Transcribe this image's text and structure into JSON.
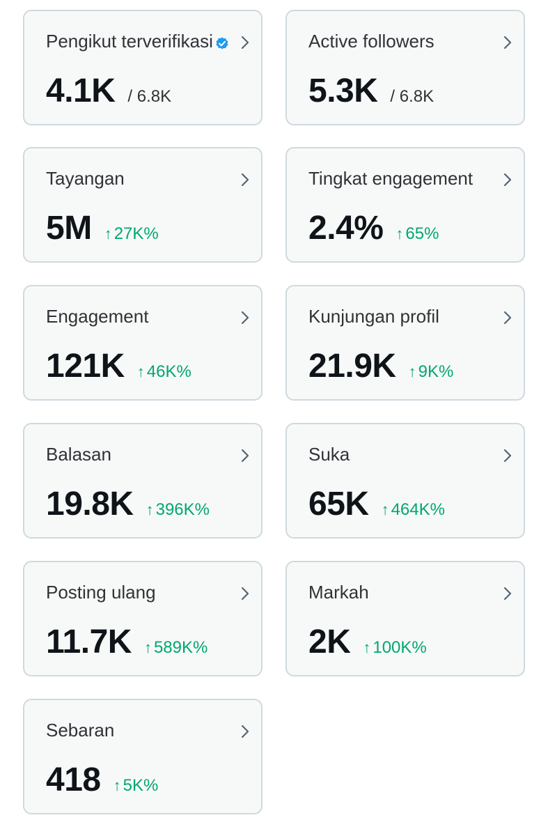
{
  "cards": [
    {
      "title": "Pengikut terverifikasi",
      "value": "4.1K",
      "sub": "/ 6.8K",
      "verified": true
    },
    {
      "title": "Active followers",
      "value": "5.3K",
      "sub": "/ 6.8K"
    },
    {
      "title": "Tayangan",
      "value": "5M",
      "change": "27K%"
    },
    {
      "title": "Tingkat engagement",
      "value": "2.4%",
      "change": "65%"
    },
    {
      "title": "Engagement",
      "value": "121K",
      "change": "46K%"
    },
    {
      "title": "Kunjungan profil",
      "value": "21.9K",
      "change": "9K%"
    },
    {
      "title": "Balasan",
      "value": "19.8K",
      "change": "396K%"
    },
    {
      "title": "Suka",
      "value": "65K",
      "change": "464K%"
    },
    {
      "title": "Posting ulang",
      "value": "11.7K",
      "change": "589K%"
    },
    {
      "title": "Markah",
      "value": "2K",
      "change": "100K%"
    },
    {
      "title": "Sebaran",
      "value": "418",
      "change": "5K%"
    }
  ],
  "icons": {
    "chevron": "chevron-right-icon",
    "verified": "verified-badge-icon",
    "arrow": "arrow-up-icon"
  },
  "colors": {
    "card_bg": "#f7f9f9",
    "card_border": "#cfd9de",
    "positive": "#00a76f",
    "verified": "#1d9bf0"
  }
}
